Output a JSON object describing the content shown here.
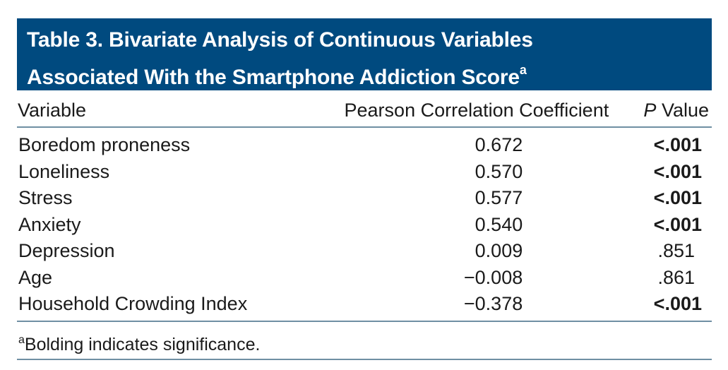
{
  "title": {
    "line1": "Table 3. Bivariate Analysis of Continuous Variables",
    "line2": "Associated With the Smartphone Addiction Score",
    "superscript": "a"
  },
  "columns": {
    "variable": "Variable",
    "coefficient": "Pearson Correlation Coefficient",
    "p_italic": "P",
    "p_rest": " Value"
  },
  "rows": [
    {
      "variable": "Boredom proneness",
      "coefficient": "0.672",
      "p": "<.001",
      "significant": true
    },
    {
      "variable": "Loneliness",
      "coefficient": "0.570",
      "p": "<.001",
      "significant": true
    },
    {
      "variable": "Stress",
      "coefficient": "0.577",
      "p": "<.001",
      "significant": true
    },
    {
      "variable": "Anxiety",
      "coefficient": "0.540",
      "p": "<.001",
      "significant": true
    },
    {
      "variable": "Depression",
      "coefficient": "0.009",
      "p": ".851",
      "significant": false
    },
    {
      "variable": "Age",
      "coefficient": "−0.008",
      "p": ".861",
      "significant": false
    },
    {
      "variable": "Household Crowding Index",
      "coefficient": "−0.378",
      "p": "<.001",
      "significant": true
    }
  ],
  "footnote": {
    "marker": "a",
    "text": "Bolding indicates significance."
  },
  "colors": {
    "title_background": "#004a7f",
    "rule": "#6f8fa3"
  }
}
